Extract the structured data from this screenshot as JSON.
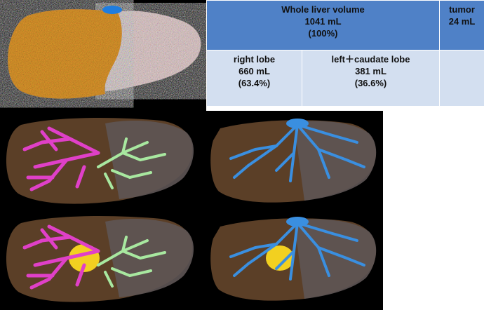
{
  "volume_table": {
    "whole_liver": {
      "title": "Whole liver volume",
      "volume": "1041 mL",
      "percent": "(100%)"
    },
    "tumor": {
      "title": "tumor",
      "volume": "24 mL"
    },
    "right_lobe": {
      "title": "right lobe",
      "volume": "660 mL",
      "percent": "(63.4%)"
    },
    "left_caudate_lobe": {
      "title": "left＋caudate lobe",
      "volume": "381 mL",
      "percent": "(36.6%)"
    }
  },
  "colors": {
    "right_lobe": "#e39b2e",
    "left_lobe": "#e8d3d3",
    "portal_vein_right": "#e040c8",
    "portal_vein_left": "#a8e8a0",
    "hepatic_vein": "#3a8fe0",
    "tumor": "#f2d020",
    "table_header": "#4f81c7",
    "table_body": "#d3dff0"
  }
}
